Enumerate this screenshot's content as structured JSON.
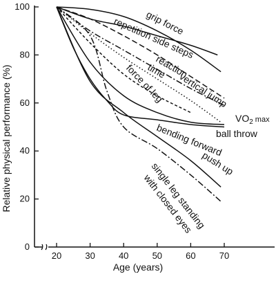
{
  "chart_data": {
    "type": "line",
    "title": "",
    "xlabel": "Age (years)",
    "ylabel": "Relative physical performance (%)",
    "xlim": [
      20,
      70
    ],
    "ylim": [
      0,
      100
    ],
    "x_ticks": [
      "20",
      "30",
      "40",
      "50",
      "60",
      "70"
    ],
    "y_ticks": [
      "0",
      "20",
      "40",
      "60",
      "80",
      "100"
    ],
    "axis_break": true,
    "grid": false,
    "series": [
      {
        "name": "grip force",
        "style": "solid",
        "x": [
          20,
          30,
          40,
          50,
          60,
          69
        ],
        "y": [
          100,
          99,
          96,
          90,
          82,
          73
        ]
      },
      {
        "name": "repetition side steps",
        "style": "long-dash",
        "x": [
          20,
          30,
          40,
          50,
          60,
          70
        ],
        "y": [
          100,
          95,
          88,
          80,
          71,
          62
        ]
      },
      {
        "name": "reaction time",
        "style": "dotted",
        "x": [
          20,
          30,
          40,
          50,
          60,
          69
        ],
        "y": [
          100,
          89,
          79,
          70,
          61,
          52
        ]
      },
      {
        "name": "vertical jump",
        "style": "dash-dot",
        "x": [
          20,
          30,
          40,
          50,
          60,
          70
        ],
        "y": [
          100,
          90,
          82,
          74,
          66,
          59
        ]
      },
      {
        "name": "force of leg",
        "style": "short-dash",
        "x": [
          20,
          30,
          40,
          50,
          60
        ],
        "y": [
          100,
          85,
          72,
          63,
          56
        ]
      },
      {
        "name": "VO2 max",
        "style": "solid",
        "x": [
          20,
          30,
          40,
          50,
          60,
          70
        ],
        "y": [
          100,
          77,
          63,
          56,
          52,
          51
        ]
      },
      {
        "name": "ball throw",
        "style": "solid",
        "x": [
          20,
          25,
          30,
          35,
          40,
          50,
          60,
          70
        ],
        "y": [
          100,
          83,
          70,
          61,
          55,
          53,
          51,
          50
        ]
      },
      {
        "name": "bending forward",
        "style": "solid",
        "x": [
          20,
          30,
          40,
          50,
          60,
          69
        ],
        "y": [
          100,
          69,
          56,
          46,
          36,
          25
        ]
      },
      {
        "name": "push up",
        "style": "dash-dot",
        "x": [
          20,
          30,
          35,
          40,
          50,
          60,
          69
        ],
        "y": [
          100,
          88,
          65,
          50,
          41,
          30,
          19
        ]
      },
      {
        "name": "single leg standing with closed eyes",
        "style": "solid",
        "x": [
          20,
          30,
          40,
          50,
          60,
          68
        ],
        "y": [
          100,
          95,
          92,
          88,
          84,
          80
        ]
      }
    ],
    "labels": {
      "grip_force": "grip force",
      "repetition_side_steps": "repetition side steps",
      "reaction": "reaction",
      "time": "time",
      "vertical_jump": "vertical jump",
      "force_of_leg": "force of leg",
      "vo2": "VO",
      "vo2_sub": "2",
      "vo2_max": "max",
      "ball_throw": "ball throw",
      "bending_forward": "bending forward",
      "push_up": "push up",
      "single_leg_standing": "single leg standing",
      "with_closed_eyes": "with closed eyes"
    }
  }
}
